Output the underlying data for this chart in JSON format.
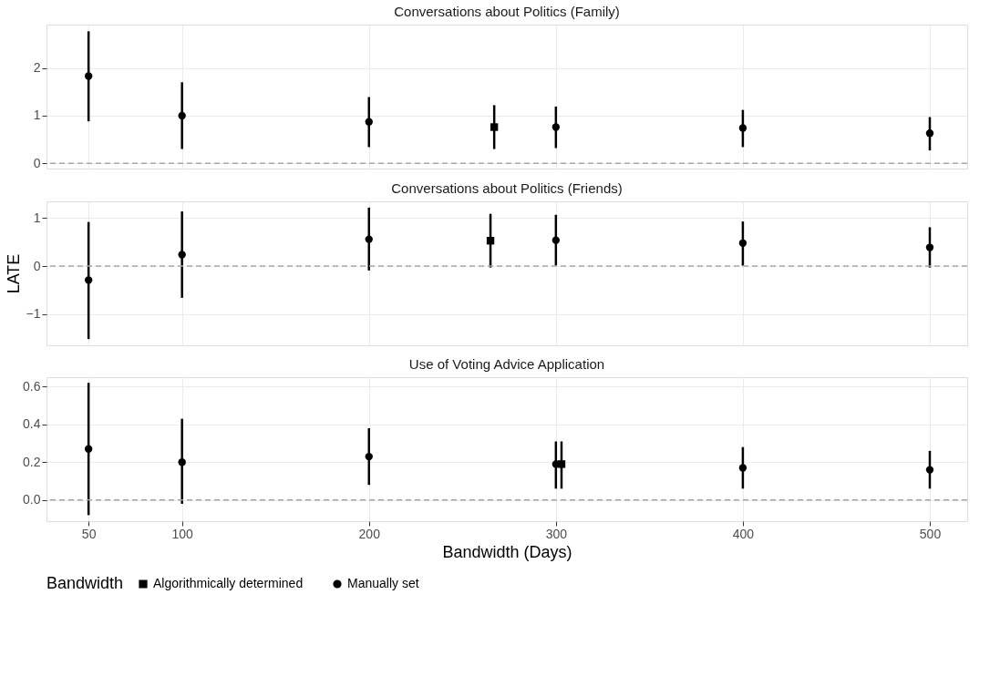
{
  "chart_data": [
    {
      "type": "scatter",
      "title": "Conversations about Politics (Family)",
      "legend_title": "Bandwidth",
      "legend": "bottom",
      "xlim": [
        27.5,
        520
      ],
      "xticks": [
        50,
        100,
        200,
        300,
        400,
        500
      ],
      "ylim": [
        -0.11,
        2.91
      ],
      "yticks": [
        0,
        1,
        2
      ],
      "grid": true,
      "tick_labels": "y",
      "ref_lines": [
        {
          "axis": "y",
          "value": 0,
          "color": "#a6a6a6",
          "line_style": "dashed"
        }
      ],
      "series": [
        {
          "name": "Algorithmically determined",
          "color": "#000000",
          "marker": "square",
          "x": [
            267
          ],
          "values": [
            0.76
          ],
          "errors": [
            [
              0.3,
              1.22
            ]
          ]
        },
        {
          "name": "Manually set",
          "color": "#000000",
          "marker": "circle",
          "x": [
            50,
            100,
            200,
            300,
            400,
            500
          ],
          "values": [
            1.83,
            1.0,
            0.87,
            0.76,
            0.74,
            0.63
          ],
          "errors": [
            [
              0.88,
              2.77
            ],
            [
              0.3,
              1.7
            ],
            [
              0.34,
              1.39
            ],
            [
              0.32,
              1.19
            ],
            [
              0.34,
              1.12
            ],
            [
              0.27,
              0.97
            ]
          ]
        }
      ]
    },
    {
      "type": "scatter",
      "title": "Conversations about Politics (Friends)",
      "ylabel": "LATE",
      "xlim": [
        27.5,
        520
      ],
      "xticks": [
        50,
        100,
        200,
        300,
        400,
        500
      ],
      "ylim": [
        -1.65,
        1.35
      ],
      "yticks": [
        -1,
        0,
        1
      ],
      "grid": true,
      "tick_labels": "y",
      "ref_lines": [
        {
          "axis": "y",
          "value": 0,
          "color": "#a6a6a6",
          "line_style": "dashed"
        }
      ],
      "series": [
        {
          "name": "Algorithmically determined",
          "color": "#000000",
          "marker": "square",
          "x": [
            265
          ],
          "values": [
            0.53
          ],
          "errors": [
            [
              -0.03,
              1.09
            ]
          ]
        },
        {
          "name": "Manually set",
          "color": "#000000",
          "marker": "circle",
          "x": [
            50,
            100,
            200,
            300,
            400,
            500
          ],
          "values": [
            -0.29,
            0.24,
            0.56,
            0.54,
            0.48,
            0.39
          ],
          "errors": [
            [
              -1.52,
              0.92
            ],
            [
              -0.66,
              1.14
            ],
            [
              -0.09,
              1.22
            ],
            [
              0.01,
              1.07
            ],
            [
              0.01,
              0.93
            ],
            [
              -0.03,
              0.81
            ]
          ]
        }
      ]
    },
    {
      "type": "scatter",
      "title": "Use of Voting Advice Application",
      "xlabel": "Bandwidth (Days)",
      "xlim": [
        27.5,
        520
      ],
      "xticks": [
        50,
        100,
        200,
        300,
        400,
        500
      ],
      "ylim": [
        -0.112,
        0.65
      ],
      "yticks": [
        {
          "value": 0,
          "label": "0.0"
        },
        0.2,
        0.4,
        0.6
      ],
      "grid": true,
      "ref_lines": [
        {
          "axis": "y",
          "value": 0,
          "color": "#a6a6a6",
          "line_style": "dashed"
        }
      ],
      "series": [
        {
          "name": "Algorithmically determined",
          "color": "#000000",
          "marker": "square",
          "x": [
            303
          ],
          "values": [
            0.19
          ],
          "errors": [
            [
              0.06,
              0.31
            ]
          ]
        },
        {
          "name": "Manually set",
          "color": "#000000",
          "marker": "circle",
          "x": [
            50,
            100,
            200,
            300,
            400,
            500
          ],
          "values": [
            0.27,
            0.2,
            0.23,
            0.19,
            0.17,
            0.16
          ],
          "errors": [
            [
              -0.08,
              0.62
            ],
            [
              -0.02,
              0.43
            ],
            [
              0.08,
              0.38
            ],
            [
              0.06,
              0.31
            ],
            [
              0.06,
              0.28
            ],
            [
              0.06,
              0.26
            ]
          ]
        }
      ]
    }
  ]
}
